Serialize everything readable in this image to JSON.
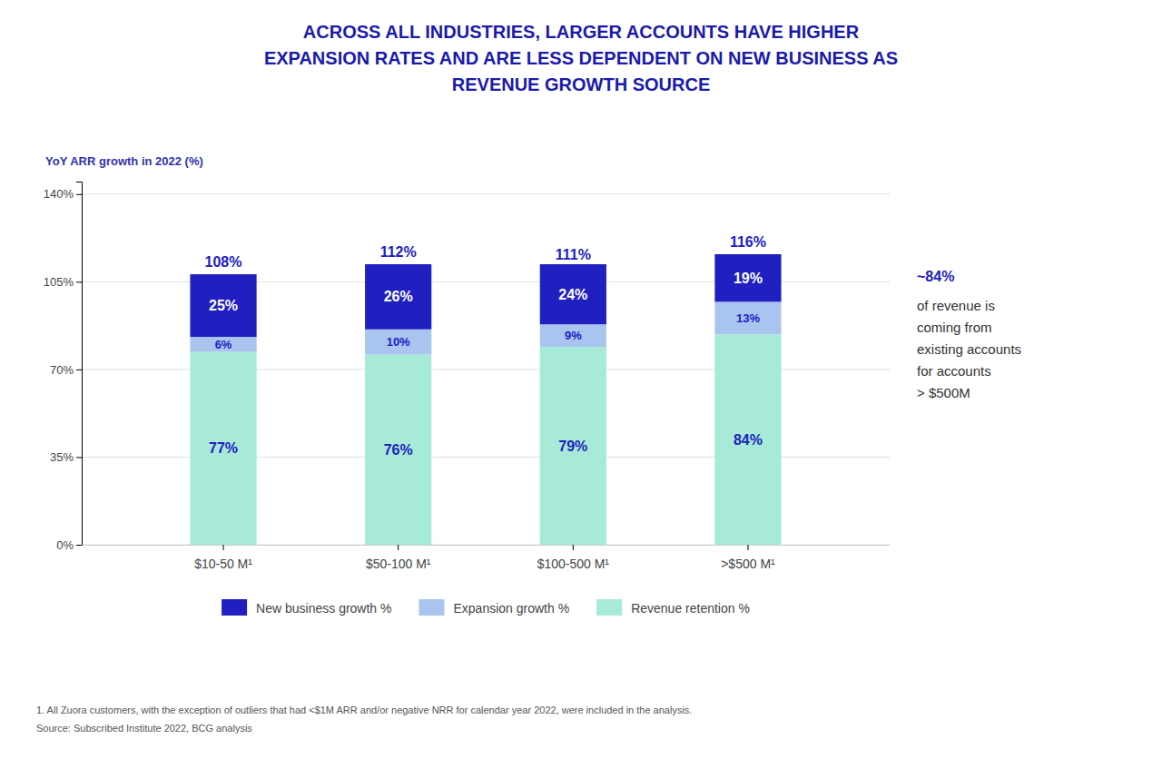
{
  "chart_data": {
    "type": "bar",
    "stacked": true,
    "title": [
      "ACROSS ALL INDUSTRIES, LARGER ACCOUNTS HAVE HIGHER",
      "EXPANSION RATES AND ARE LESS DEPENDENT ON NEW BUSINESS AS",
      "REVENUE GROWTH SOURCE"
    ],
    "y_label": "YoY ARR growth in 2022 (%)",
    "categories": [
      "$10-50 M¹",
      "$50-100 M¹",
      "$100-500 M¹",
      ">$500 M¹"
    ],
    "series": [
      {
        "name": "Revenue retention %",
        "color": "#a8ead8",
        "values": [
          77,
          76,
          79,
          84
        ],
        "value_labels": [
          "77%",
          "76%",
          "79%",
          "84%"
        ]
      },
      {
        "name": "Expansion growth %",
        "color": "#aac4f0",
        "values": [
          6,
          10,
          9,
          13
        ],
        "value_labels": [
          "6%",
          "10%",
          "9%",
          "13%"
        ]
      },
      {
        "name": "New business growth %",
        "color": "#2020c0",
        "values": [
          25,
          26,
          24,
          19
        ],
        "value_labels": [
          "25%",
          "26%",
          "24%",
          "19%"
        ]
      }
    ],
    "totals": [
      108,
      112,
      111,
      116
    ],
    "total_labels": [
      "108%",
      "112%",
      "111%",
      "116%"
    ],
    "data_labels": true,
    "ylim": [
      0,
      145
    ],
    "yticks": [
      {
        "value": 0,
        "label": "0%"
      },
      {
        "value": 35,
        "label": "35%"
      },
      {
        "value": 70,
        "label": "70%"
      },
      {
        "value": 105,
        "label": "105%"
      },
      {
        "value": 140,
        "label": "140%"
      }
    ],
    "grid": true,
    "legend": "bottom",
    "annotations": [
      "~84%",
      "of revenue is",
      "coming from",
      "existing accounts",
      "for accounts",
      "> $500M"
    ],
    "footnotes": [
      "1. All Zuora customers, with the exception of outliers that had <$1M ARR and/or negative NRR for calendar year 2022, were included in the analysis.",
      "Source: Subscribed Institute 2022, BCG analysis"
    ]
  }
}
